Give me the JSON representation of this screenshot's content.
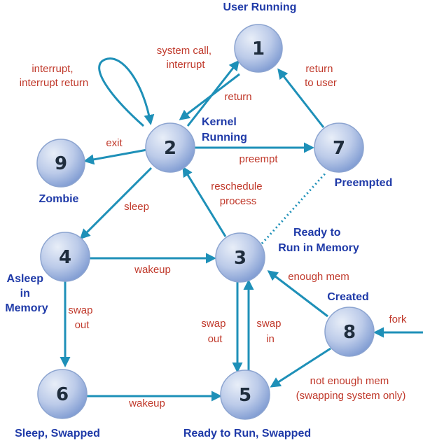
{
  "colors": {
    "edge": "#1e90b8",
    "state_label": "#1f3aa8",
    "edge_label": "#c0392b",
    "node_fill_light": "#e8eef8",
    "node_fill_dark": "#7f9bd2",
    "node_stroke": "#8ca4d0"
  },
  "states": {
    "s1": {
      "num": "1",
      "label": [
        "User Running"
      ]
    },
    "s2": {
      "num": "2",
      "label": [
        "Kernel",
        "Running"
      ]
    },
    "s3": {
      "num": "3",
      "label": [
        "Ready to",
        "Run in Memory"
      ]
    },
    "s4": {
      "num": "4",
      "label": [
        "Asleep",
        "in",
        "Memory"
      ]
    },
    "s5": {
      "num": "5",
      "label": [
        "Ready to Run, Swapped"
      ]
    },
    "s6": {
      "num": "6",
      "label": [
        "Sleep, Swapped"
      ]
    },
    "s7": {
      "num": "7",
      "label": [
        "Preempted"
      ]
    },
    "s8": {
      "num": "8",
      "label": [
        "Created"
      ]
    },
    "s9": {
      "num": "9",
      "label": [
        "Zombie"
      ]
    }
  },
  "edges": {
    "syscall": [
      "system call,",
      "interrupt"
    ],
    "return_": [
      "return"
    ],
    "interrupt_return": [
      "interrupt,",
      "interrupt return"
    ],
    "exit": [
      "exit"
    ],
    "preempt": [
      "preempt"
    ],
    "return_to_user": [
      "return",
      "to user"
    ],
    "reschedule": [
      "reschedule",
      "process"
    ],
    "sleep": [
      "sleep"
    ],
    "wakeup_mem": [
      "wakeup"
    ],
    "swap_out_4": [
      "swap",
      "out"
    ],
    "swap_out_3": [
      "swap",
      "out"
    ],
    "swap_in": [
      "swap",
      "in"
    ],
    "enough_mem": [
      "enough mem"
    ],
    "fork": [
      "fork"
    ],
    "not_enough_mem": [
      "not enough mem",
      "(swapping system only)"
    ],
    "wakeup_swapped": [
      "wakeup"
    ]
  }
}
